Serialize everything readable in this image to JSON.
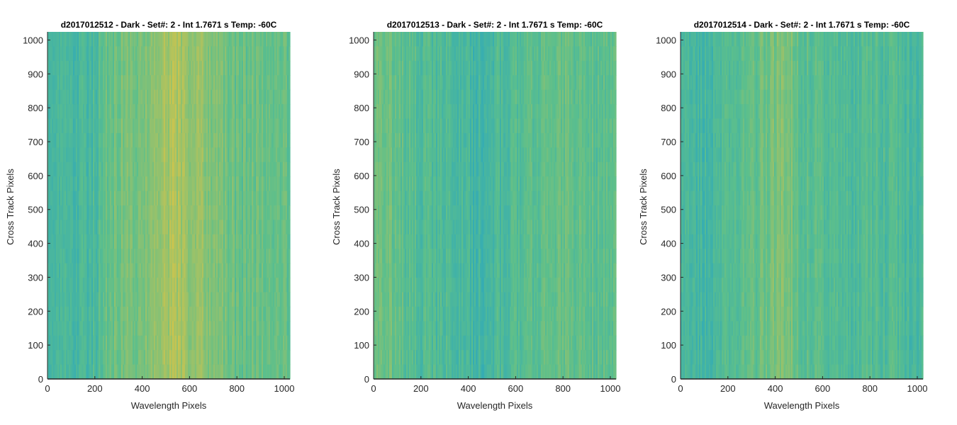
{
  "figure": {
    "colors": {
      "axis": "#262626",
      "colormap_low": "#1fa2c9",
      "colormap_mid": "#5cbf8c",
      "colormap_high": "#cfc44c"
    }
  },
  "chart_data": [
    {
      "type": "heatmap",
      "title": "d2017012512 - Dark - Set#: 2 - Int 1.7671 s Temp: -60C",
      "xlabel": "Wavelength Pixels",
      "ylabel": "Cross Track Pixels",
      "xlim": [
        0,
        1024
      ],
      "ylim": [
        0,
        1024
      ],
      "xticks": [
        0,
        200,
        400,
        600,
        800,
        1000
      ],
      "yticks": [
        0,
        100,
        200,
        300,
        400,
        500,
        600,
        700,
        800,
        900,
        1000
      ],
      "grid": false,
      "colormap": "parula",
      "column_profile": {
        "x": [
          0,
          60,
          140,
          210,
          250,
          330,
          420,
          480,
          530,
          560,
          620,
          680,
          720,
          800,
          900,
          1000,
          1024
        ],
        "level": [
          0.32,
          0.3,
          0.36,
          0.38,
          0.56,
          0.62,
          0.64,
          0.75,
          0.86,
          0.8,
          0.72,
          0.7,
          0.6,
          0.54,
          0.55,
          0.52,
          0.52
        ]
      }
    },
    {
      "type": "heatmap",
      "title": "d2017012513 - Dark - Set#: 2 - Int 1.7671 s Temp: -60C",
      "xlabel": "Wavelength Pixels",
      "ylabel": "Cross Track Pixels",
      "xlim": [
        0,
        1024
      ],
      "ylim": [
        0,
        1024
      ],
      "xticks": [
        0,
        200,
        400,
        600,
        800,
        1000
      ],
      "yticks": [
        0,
        100,
        200,
        300,
        400,
        500,
        600,
        700,
        800,
        900,
        1000
      ],
      "grid": false,
      "colormap": "parula",
      "column_profile": {
        "x": [
          0,
          30,
          100,
          200,
          300,
          400,
          440,
          500,
          600,
          700,
          780,
          850,
          950,
          1024
        ],
        "level": [
          0.66,
          0.6,
          0.5,
          0.42,
          0.4,
          0.34,
          0.3,
          0.36,
          0.44,
          0.5,
          0.56,
          0.5,
          0.48,
          0.5
        ]
      }
    },
    {
      "type": "heatmap",
      "title": "d2017012514 - Dark - Set#: 2 - Int 1.7671 s Temp: -60C",
      "xlabel": "Wavelength Pixels",
      "ylabel": "Cross Track Pixels",
      "xlim": [
        0,
        1024
      ],
      "ylim": [
        0,
        1024
      ],
      "xticks": [
        0,
        200,
        400,
        600,
        800,
        1000
      ],
      "yticks": [
        0,
        100,
        200,
        300,
        400,
        500,
        600,
        700,
        800,
        900,
        1000
      ],
      "grid": false,
      "colormap": "parula",
      "column_profile": {
        "x": [
          0,
          60,
          120,
          200,
          300,
          380,
          430,
          470,
          520,
          600,
          700,
          800,
          900,
          1000,
          1024
        ],
        "level": [
          0.4,
          0.3,
          0.34,
          0.44,
          0.52,
          0.6,
          0.66,
          0.62,
          0.5,
          0.44,
          0.4,
          0.44,
          0.4,
          0.36,
          0.36
        ]
      }
    }
  ]
}
